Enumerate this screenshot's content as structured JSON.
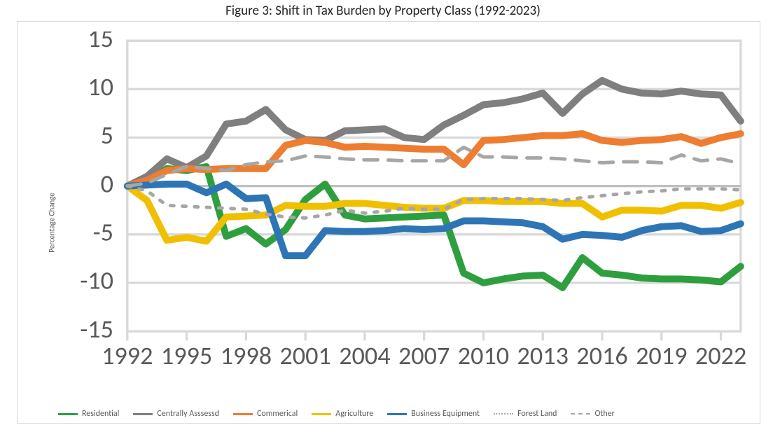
{
  "chart": {
    "type": "line",
    "title": "Figure 3: Shift in Tax Burden by Property Class (1992-2023)",
    "title_fontsize": 19,
    "title_color": "#222222",
    "y_axis_label": "Percentage Change",
    "label_fontsize": 11,
    "label_color": "#595959",
    "background_color": "#ffffff",
    "panel_border_color": "#d9d9d9",
    "grid_color": "#d9d9d9",
    "grid_width": 1,
    "zero_line_color": "#bfbfbf",
    "xlim": [
      1992,
      2023
    ],
    "ylim": [
      -15,
      15
    ],
    "yticks": [
      -15,
      -10,
      -5,
      0,
      5,
      10,
      15
    ],
    "xticks": [
      1992,
      1995,
      1998,
      2001,
      2004,
      2007,
      2010,
      2013,
      2016,
      2019,
      2022
    ],
    "tick_fontsize": 11,
    "tick_color": "#595959",
    "years": [
      1992,
      1993,
      1994,
      1995,
      1996,
      1997,
      1998,
      1999,
      2000,
      2001,
      2002,
      2003,
      2004,
      2005,
      2006,
      2007,
      2008,
      2009,
      2010,
      2011,
      2012,
      2013,
      2014,
      2015,
      2016,
      2017,
      2018,
      2019,
      2020,
      2021,
      2022,
      2023
    ],
    "series": [
      {
        "name": "Residential",
        "color": "#2e9f3e",
        "width": 3,
        "dash": "none",
        "values": [
          0,
          0.5,
          1.8,
          1.6,
          2.0,
          -5.2,
          -4.4,
          -6.0,
          -4.5,
          -1.4,
          0.2,
          -3.0,
          -3.4,
          -3.3,
          -3.2,
          -3.1,
          -3.0,
          -9.0,
          -10.0,
          -9.6,
          -9.3,
          -9.2,
          -10.5,
          -7.4,
          -9.0,
          -9.2,
          -9.5,
          -9.6,
          -9.6,
          -9.7,
          -9.9,
          -8.3
        ]
      },
      {
        "name": "Centrally Asssessd",
        "color": "#7f7f7f",
        "width": 3,
        "dash": "none",
        "values": [
          0,
          1.0,
          2.8,
          1.9,
          3.1,
          6.4,
          6.7,
          7.9,
          5.8,
          4.8,
          4.7,
          5.7,
          5.8,
          5.9,
          5.0,
          4.8,
          6.3,
          7.3,
          8.4,
          8.6,
          9.0,
          9.6,
          7.5,
          9.5,
          10.9,
          10.0,
          9.6,
          9.5,
          9.8,
          9.5,
          9.4,
          6.7
        ]
      },
      {
        "name": "Commerical",
        "color": "#ed7d31",
        "width": 3,
        "dash": "none",
        "values": [
          0,
          0.6,
          1.6,
          1.8,
          1.7,
          1.8,
          1.8,
          1.8,
          4.2,
          4.7,
          4.5,
          4.0,
          4.1,
          4.0,
          3.9,
          3.8,
          3.8,
          2.2,
          4.7,
          4.8,
          5.0,
          5.2,
          5.2,
          5.4,
          4.7,
          4.5,
          4.7,
          4.8,
          5.1,
          4.4,
          5.0,
          5.4
        ]
      },
      {
        "name": "Agriculture",
        "color": "#f0c000",
        "width": 3,
        "dash": "none",
        "values": [
          0,
          -1.5,
          -5.6,
          -5.3,
          -5.7,
          -3.2,
          -3.1,
          -3.0,
          -2.0,
          -2.1,
          -2.1,
          -1.8,
          -1.8,
          -2.0,
          -2.2,
          -2.3,
          -2.3,
          -1.5,
          -1.5,
          -1.6,
          -1.6,
          -1.6,
          -1.8,
          -1.8,
          -3.2,
          -2.5,
          -2.5,
          -2.6,
          -2.0,
          -2.0,
          -2.3,
          -1.7
        ]
      },
      {
        "name": "Business Equipment",
        "color": "#2e75b6",
        "width": 3,
        "dash": "none",
        "values": [
          0,
          0.1,
          0.2,
          0.2,
          -0.7,
          0.2,
          -1.3,
          -1.2,
          -7.2,
          -7.2,
          -4.6,
          -4.7,
          -4.7,
          -4.6,
          -4.4,
          -4.5,
          -4.4,
          -3.6,
          -3.6,
          -3.7,
          -3.8,
          -4.2,
          -5.5,
          -5.0,
          -5.1,
          -5.3,
          -4.6,
          -4.2,
          -4.1,
          -4.7,
          -4.6,
          -3.9
        ]
      },
      {
        "name": "Forest Land",
        "color": "#a6a6a6",
        "width": 1.5,
        "dash": "dot",
        "values": [
          0,
          -0.5,
          -2.0,
          -2.1,
          -2.2,
          -2.3,
          -2.4,
          -2.9,
          -3.2,
          -3.3,
          -3.0,
          -2.5,
          -2.8,
          -2.6,
          -2.3,
          -2.4,
          -2.4,
          -1.4,
          -1.3,
          -1.3,
          -1.3,
          -1.4,
          -1.5,
          -1.2,
          -1.0,
          -0.8,
          -0.6,
          -0.5,
          -0.3,
          -0.3,
          -0.3,
          -0.4
        ]
      },
      {
        "name": "Other",
        "color": "#a6a6a6",
        "width": 1.5,
        "dash": "dash",
        "values": [
          0,
          0.3,
          1.2,
          2.0,
          1.8,
          1.6,
          2.2,
          2.5,
          2.6,
          3.1,
          3.0,
          2.8,
          2.7,
          2.7,
          2.6,
          2.6,
          2.6,
          4.0,
          3.0,
          3.0,
          2.9,
          2.9,
          2.8,
          2.6,
          2.4,
          2.5,
          2.5,
          2.4,
          3.2,
          2.6,
          2.8,
          2.3
        ]
      }
    ],
    "legend": {
      "items": [
        "Residential",
        "Centrally Asssessd",
        "Commerical",
        "Agriculture",
        "Business Equipment",
        "Forest Land",
        "Other"
      ],
      "fontsize": 12,
      "color": "#595959",
      "swatch_width": 28
    }
  }
}
